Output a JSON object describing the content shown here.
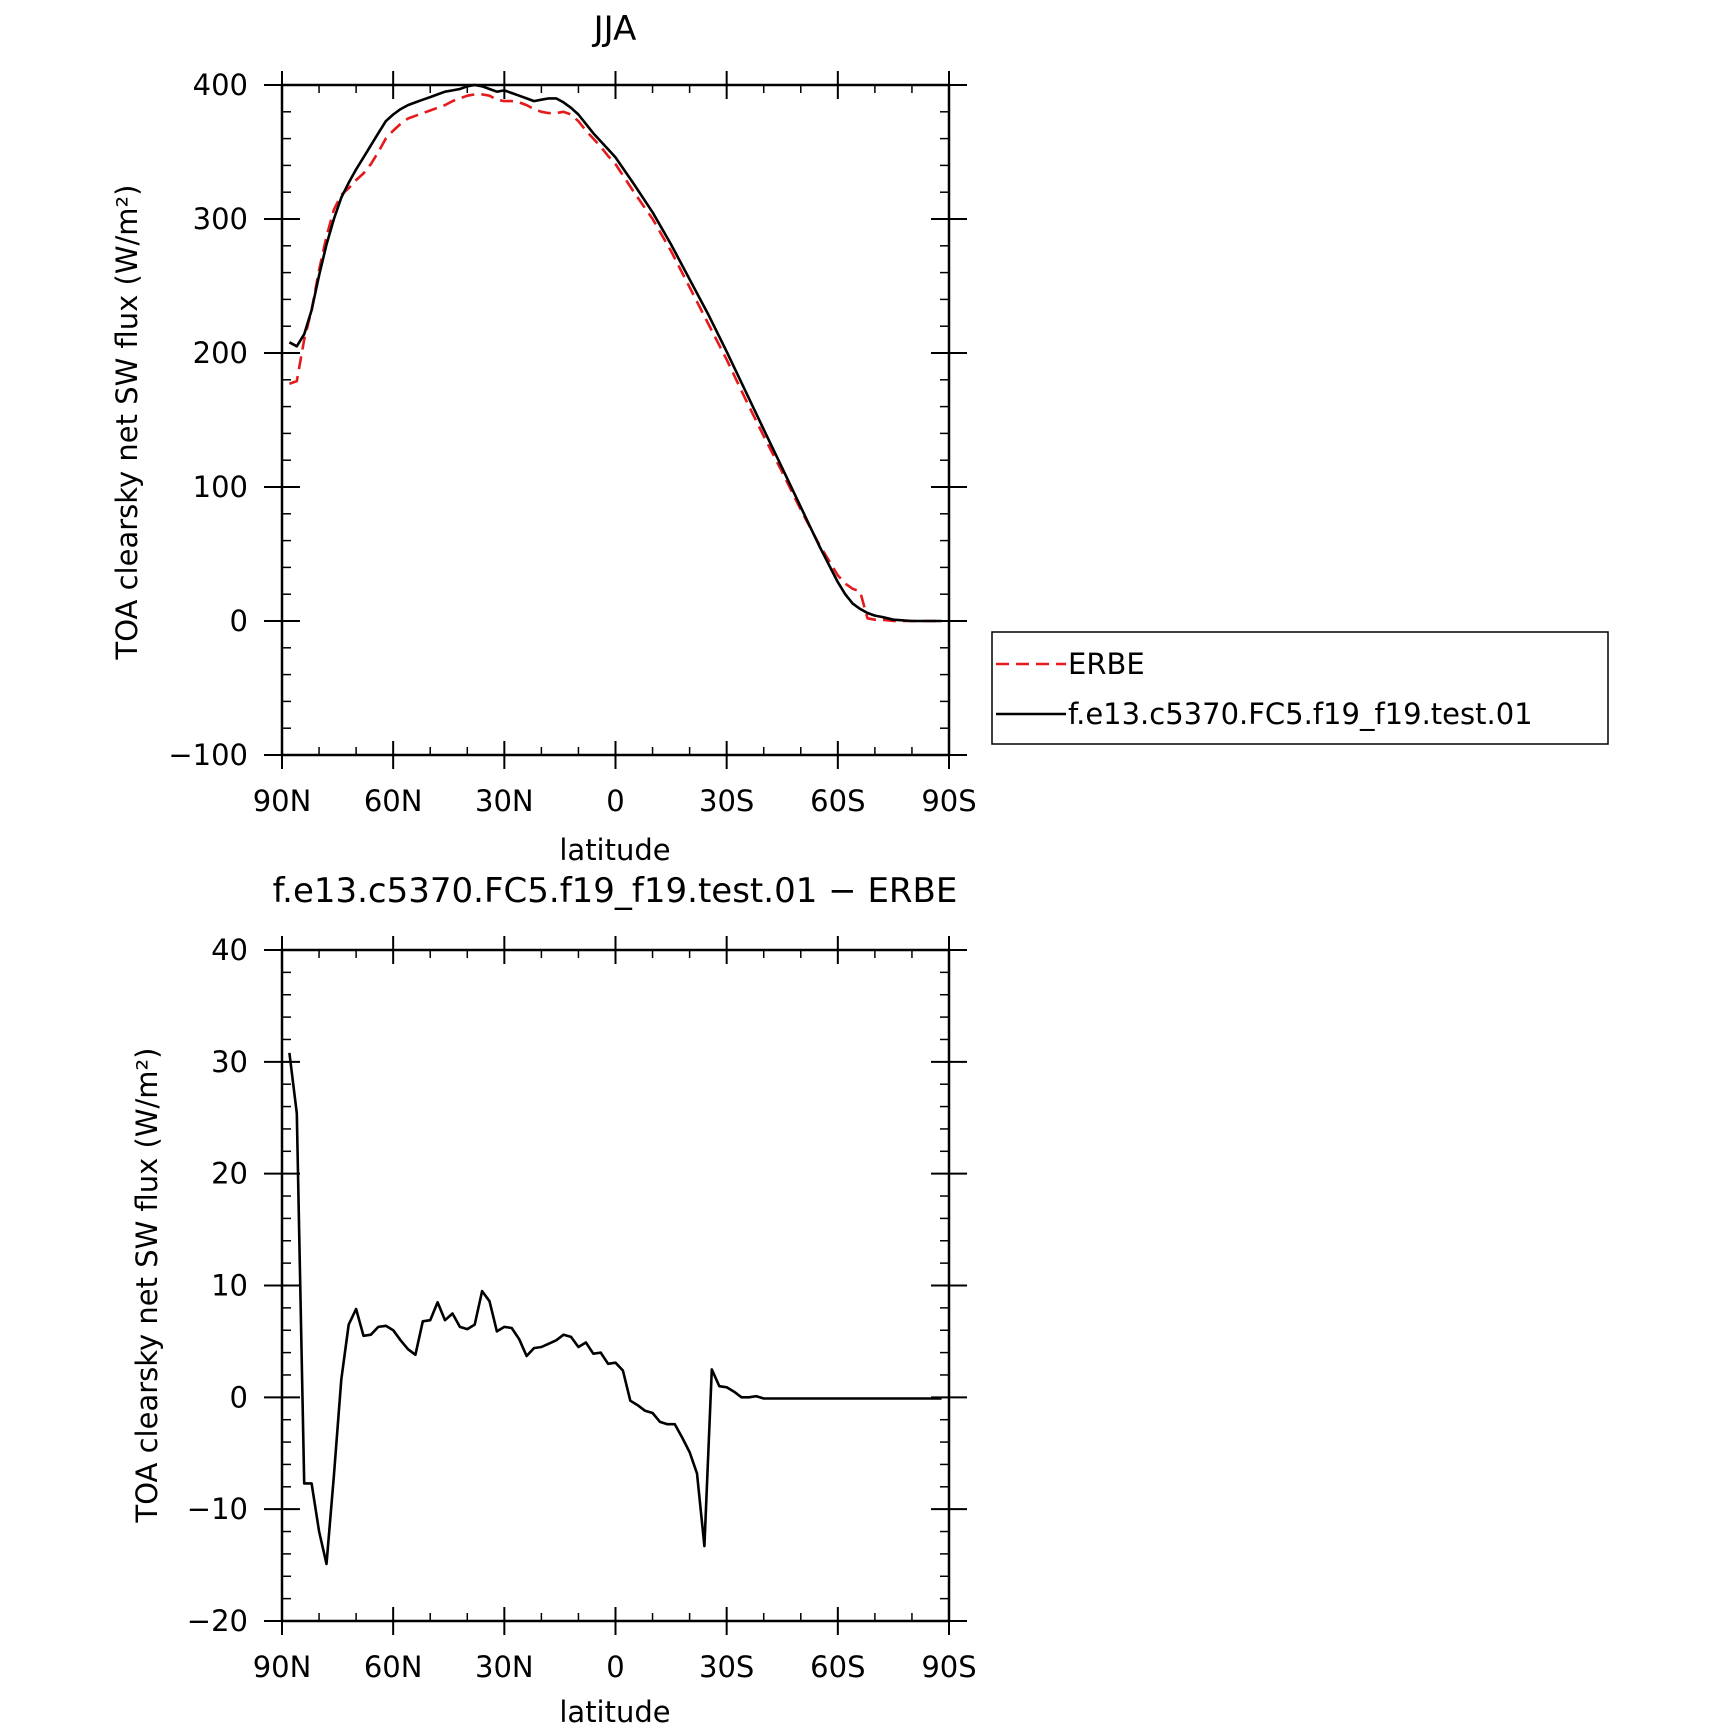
{
  "chart_data": [
    {
      "type": "line",
      "title": "JJA",
      "xlabel": "latitude",
      "ylabel": "TOA clearsky net SW flux (W/m²)",
      "ylim": [
        -100,
        400
      ],
      "xlim": [
        90,
        -90
      ],
      "xticks": [
        90,
        60,
        30,
        0,
        -30,
        -60,
        -90
      ],
      "xtick_labels": [
        "90N",
        "60N",
        "30N",
        "0",
        "30S",
        "60S",
        "90S"
      ],
      "yticks": [
        -100,
        0,
        100,
        200,
        300,
        400
      ],
      "ytick_labels": [
        "−100",
        "0",
        "100",
        "200",
        "300",
        "400"
      ],
      "legend_position": "right",
      "series": [
        {
          "name": "ERBE",
          "color": "#e41a1c",
          "style": "dashed",
          "x": [
            88,
            86,
            84,
            82,
            80,
            78,
            76,
            74,
            72,
            70,
            68,
            66,
            64,
            62,
            60,
            58,
            56,
            54,
            52,
            50,
            48,
            46,
            44,
            42,
            40,
            38,
            36,
            34,
            32,
            30,
            28,
            26,
            24,
            22,
            20,
            18,
            16,
            14,
            12,
            10,
            8,
            6,
            4,
            2,
            0,
            -5,
            -10,
            -15,
            -20,
            -25,
            -30,
            -35,
            -40,
            -45,
            -50,
            -55,
            -60,
            -62,
            -64,
            -66,
            -68,
            -70,
            -72,
            -75,
            -80,
            -85,
            -88
          ],
          "y": [
            177,
            179,
            210,
            232,
            262,
            287,
            307,
            318,
            323,
            329,
            334,
            341,
            350,
            360,
            366,
            371,
            375,
            377,
            379,
            381,
            383,
            385,
            388,
            390,
            392,
            393,
            393,
            392,
            389,
            388,
            388,
            387,
            385,
            382,
            380,
            379,
            379,
            380,
            378,
            373,
            366,
            360,
            354,
            347,
            341,
            320,
            300,
            276,
            249,
            222,
            195,
            166,
            138,
            111,
            83,
            57,
            34,
            28,
            24,
            22,
            2,
            1,
            1,
            0,
            0,
            0,
            0
          ]
        },
        {
          "name": "f.e13.c5370.FC5.f19_f19.test.01",
          "color": "#000000",
          "style": "solid",
          "x": [
            88,
            86,
            84,
            82,
            80,
            78,
            76,
            74,
            72,
            70,
            68,
            66,
            64,
            62,
            60,
            58,
            56,
            54,
            52,
            50,
            48,
            46,
            44,
            42,
            40,
            38,
            36,
            34,
            32,
            30,
            28,
            26,
            24,
            22,
            20,
            18,
            16,
            14,
            12,
            10,
            8,
            6,
            4,
            2,
            0,
            -5,
            -10,
            -15,
            -20,
            -25,
            -30,
            -35,
            -40,
            -45,
            -50,
            -55,
            -60,
            -62,
            -64,
            -66,
            -68,
            -70,
            -72,
            -75,
            -80,
            -85,
            -88
          ],
          "y": [
            208,
            205,
            214,
            232,
            258,
            281,
            300,
            316,
            327,
            337,
            346,
            355,
            364,
            373,
            378,
            382,
            385,
            387,
            389,
            391,
            393,
            395,
            396,
            397,
            399,
            400,
            399,
            397,
            395,
            396,
            394,
            392,
            390,
            388,
            389,
            390,
            390,
            387,
            383,
            378,
            371,
            364,
            358,
            352,
            346,
            326,
            305,
            281,
            255,
            229,
            201,
            172,
            143,
            114,
            85,
            56,
            29,
            20,
            13,
            9,
            6,
            4,
            3,
            1,
            0,
            0,
            0
          ]
        }
      ]
    },
    {
      "type": "line",
      "title": "f.e13.c5370.FC5.f19_f19.test.01 − ERBE",
      "xlabel": "latitude",
      "ylabel": "TOA clearsky net SW flux (W/m²)",
      "ylim": [
        -20,
        40
      ],
      "xlim": [
        90,
        -90
      ],
      "xticks": [
        90,
        60,
        30,
        0,
        -30,
        -60,
        -90
      ],
      "xtick_labels": [
        "90N",
        "60N",
        "30N",
        "0",
        "30S",
        "60S",
        "90S"
      ],
      "yticks": [
        -20,
        -10,
        0,
        10,
        20,
        30,
        40
      ],
      "ytick_labels": [
        "−20",
        "−10",
        "0",
        "10",
        "20",
        "30",
        "40"
      ],
      "series": [
        {
          "color": "#000000",
          "style": "solid",
          "x": [
            88,
            86,
            84,
            82,
            80,
            78,
            76,
            74,
            72,
            70,
            68,
            66,
            64,
            62,
            60,
            58,
            56,
            54,
            52,
            50,
            48,
            46,
            44,
            42,
            40,
            38,
            36,
            34,
            32,
            30,
            28,
            26,
            24,
            22,
            20,
            18,
            16,
            14,
            12,
            10,
            8,
            6,
            4,
            2,
            0,
            -2,
            -4,
            -6,
            -8,
            -10,
            -12,
            -14,
            -16,
            -18,
            -20,
            -22,
            -24,
            -26,
            -28,
            -30,
            -32,
            -34,
            -36,
            -38,
            -40,
            -42,
            -44,
            -46,
            -48,
            -50,
            -52,
            -54,
            -56,
            -58,
            -60,
            -62,
            -64,
            -66,
            -68,
            -70,
            -72,
            -74,
            -76,
            -78,
            -80,
            -82,
            -84,
            -86,
            -88
          ],
          "y": [
            30.8,
            25.4,
            -7.7,
            -7.7,
            -12,
            -14.9,
            -7,
            1.6,
            6.5,
            7.9,
            5.5,
            5.6,
            6.3,
            6.4,
            6,
            5.1,
            4.3,
            3.8,
            6.8,
            6.9,
            8.5,
            6.9,
            7.5,
            6.3,
            6.1,
            6.5,
            9.5,
            8.6,
            5.9,
            6.3,
            6.2,
            5.2,
            3.7,
            4.4,
            4.5,
            4.8,
            5.1,
            5.6,
            5.4,
            4.5,
            4.9,
            3.9,
            4,
            3,
            3.1,
            2.4,
            -0.3,
            -0.7,
            -1.2,
            -1.4,
            -2.2,
            -2.4,
            -2.4,
            -3.6,
            -4.9,
            -6.8,
            -13.3,
            2.5,
            1.0,
            0.9,
            0.5,
            0,
            0,
            0.1,
            -0.1,
            -0.1,
            -0.1,
            -0.1,
            -0.1,
            -0.1,
            -0.1,
            -0.1,
            -0.1,
            -0.1,
            -0.1,
            -0.1,
            -0.1,
            -0.1,
            -0.1,
            -0.1,
            -0.1,
            -0.1,
            -0.1,
            -0.1,
            -0.1,
            -0.1,
            -0.1,
            -0.1,
            -0.1
          ]
        }
      ]
    }
  ]
}
